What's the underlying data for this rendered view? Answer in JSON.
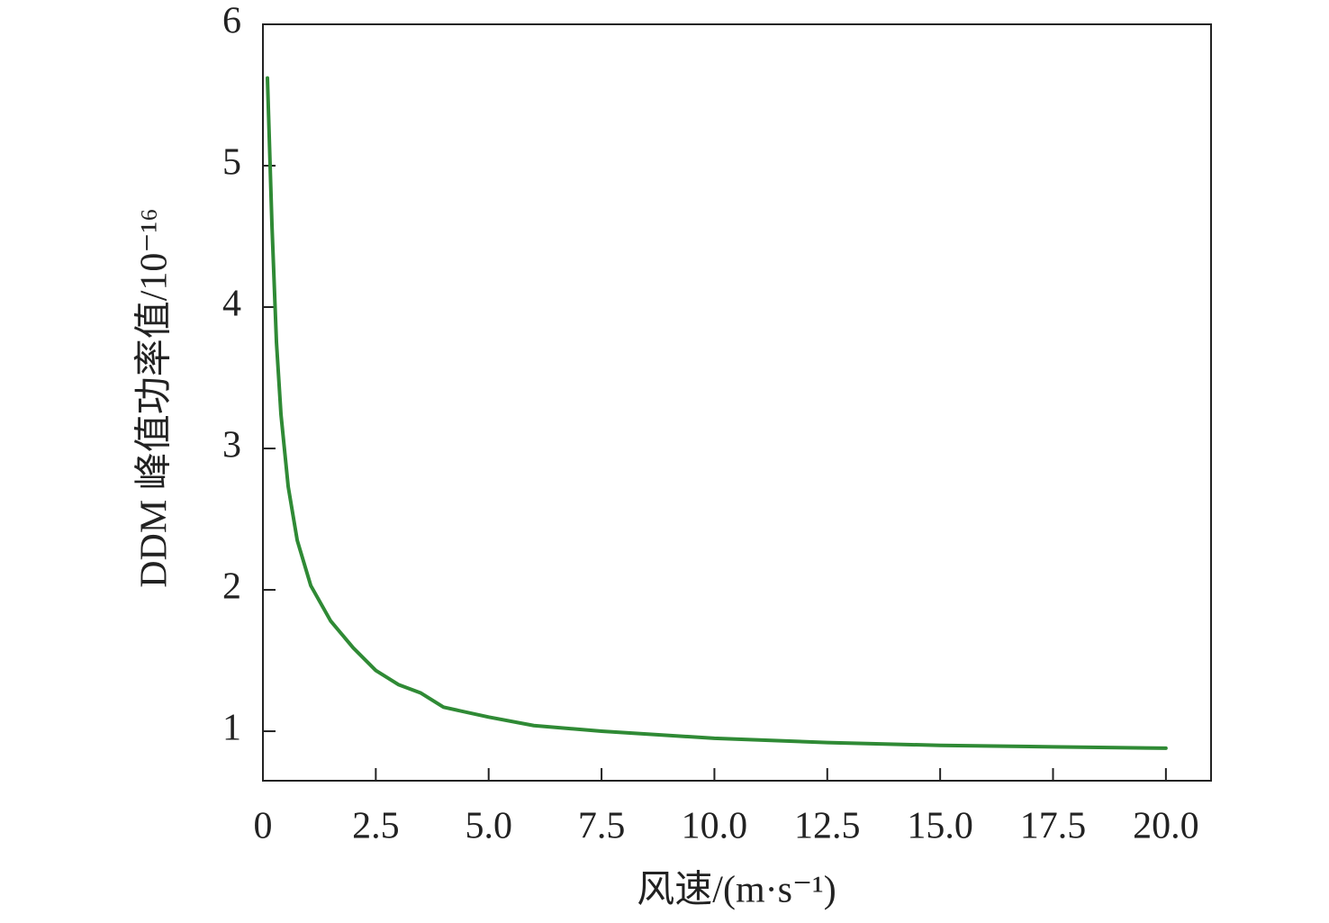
{
  "chart_data": {
    "type": "line",
    "xlabel": "风速/(m·s⁻¹)",
    "ylabel": "DDM 峰值功率值/10⁻¹⁶",
    "x": [
      0.1,
      0.2,
      0.3,
      0.4,
      0.56,
      0.76,
      1.06,
      1.5,
      2.0,
      2.5,
      3.0,
      3.5,
      4.0,
      5.0,
      6.0,
      7.5,
      10.0,
      12.5,
      15.0,
      17.5,
      20.0
    ],
    "series": [
      {
        "color": "#2f8a35",
        "values": [
          5.62,
          4.58,
          3.75,
          3.24,
          2.73,
          2.35,
          2.03,
          1.78,
          1.59,
          1.43,
          1.33,
          1.27,
          1.17,
          1.1,
          1.04,
          1.0,
          0.95,
          0.92,
          0.9,
          0.89,
          0.88
        ]
      }
    ],
    "xlim": [
      0,
      21
    ],
    "ylim": [
      0.65,
      6
    ],
    "xticks": [
      0,
      2.5,
      {
        "value": 5,
        "label": "5.0"
      },
      7.5,
      {
        "value": 10,
        "label": "10.0"
      },
      12.5,
      {
        "value": 15,
        "label": "15.0"
      },
      17.5,
      {
        "value": 20,
        "label": "20.0"
      }
    ],
    "yticks": [
      1,
      2,
      3,
      4,
      5,
      6
    ],
    "grid": false
  }
}
